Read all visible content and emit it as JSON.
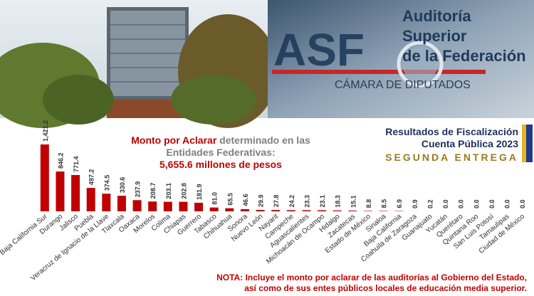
{
  "header": {
    "logo": "ASF",
    "name_lines": [
      "Auditoría",
      "Superior",
      "de la Federación"
    ],
    "chamber": "CÁMARA DE DIPUTADOS"
  },
  "chart_data": {
    "type": "bar",
    "title_parts": [
      "Monto por Aclarar",
      "determinado en las",
      "Entidades Federativas:"
    ],
    "subtitle": "5,655.6 millones de pesos",
    "color": "#c00000",
    "ylim": [
      0,
      1421.2
    ],
    "categories": [
      "Baja California Sur",
      "Durango",
      "Jalisco",
      "Puebla",
      "Veracruz de Ignacio de la Llave",
      "Tlaxcala",
      "Oaxaca",
      "Morelos",
      "Colima",
      "Chiapas",
      "Guerrero",
      "Tabasco",
      "Chihuahua",
      "Sonora",
      "Nuevo León",
      "Nayarit",
      "Campeche",
      "Aguascalientes",
      "Michoacán de Ocampo",
      "Hidalgo",
      "Zacatecas",
      "Estado de México",
      "Sinaloa",
      "Baja California",
      "Coahuila de Zaragoza",
      "Guanajuato",
      "Yucatán",
      "Querétaro",
      "Quintana Roo",
      "San Luis Potosí",
      "Tamaulipas",
      "Ciudad de México"
    ],
    "values": [
      1421.2,
      846.2,
      771.4,
      497.2,
      374.5,
      330.6,
      237.9,
      208.7,
      203.1,
      202.8,
      181.9,
      81.0,
      65.5,
      46.6,
      29.9,
      27.8,
      24.2,
      23.3,
      23.1,
      18.3,
      15.1,
      8.8,
      8.5,
      6.9,
      0.9,
      0.2,
      0.0,
      0.0,
      0.0,
      0.0,
      0.0,
      0.0
    ],
    "value_labels": [
      "1,421.2",
      "846.2",
      "771.4",
      "497.2",
      "374.5",
      "330.6",
      "237.9",
      "208.7",
      "203.1",
      "202.8",
      "181.9",
      "81.0",
      "65.5",
      "46.6",
      "29.9",
      "27.8",
      "24.2",
      "23.3",
      "23.1",
      "18.3",
      "15.1",
      "8.8",
      "8.5",
      "6.9",
      "0.9",
      "0.2",
      "0.0",
      "0.0",
      "0.0",
      "0.0",
      "0.0",
      "0.0"
    ]
  },
  "panel": {
    "lines": [
      "Resultados de Fiscalización",
      "Cuenta Pública 2023"
    ],
    "tag": "SEGUNDA ENTREGA"
  },
  "note": {
    "label": "NOTA:",
    "lines": [
      "Incluye el monto por aclarar de las auditorías al Gobierno del Estado,",
      "así como de sus entes públicos locales de educación media superior."
    ]
  }
}
